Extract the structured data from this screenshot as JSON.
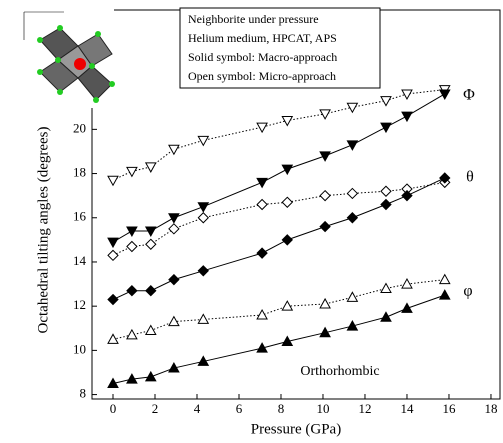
{
  "chart_data": {
    "type": "line",
    "xlabel": "Pressure (GPa)",
    "ylabel": "Octahedral tilting angles (degrees)",
    "xlim": [
      -1,
      18.43
    ],
    "ylim": [
      7.8,
      25.4
    ],
    "xticks": [
      0,
      2,
      4,
      6,
      8,
      10,
      12,
      14,
      16,
      18
    ],
    "yticks": [
      8,
      10,
      12,
      14,
      16,
      18,
      20
    ],
    "notes": [
      "Neighborite under pressure",
      "Helium medium, HPCAT, APS",
      "Solid symbol: Macro-approach",
      "Open symbol: Micro-approach"
    ],
    "annotations": [
      "Φ",
      "θ",
      "φ",
      "Orthorhombic"
    ],
    "series": [
      {
        "color": "#000000",
        "marker": "down-triangle",
        "filled": false,
        "dotted": true,
        "x": [
          0,
          0.9,
          1.8,
          2.9,
          4.3,
          7.1,
          8.3,
          10.1,
          11.4,
          13,
          14,
          15.8
        ],
        "values": [
          17.7,
          18.1,
          18.3,
          19.1,
          19.5,
          20.1,
          20.4,
          20.7,
          21.0,
          21.3,
          21.6,
          21.8
        ]
      },
      {
        "color": "#000000",
        "marker": "down-triangle",
        "filled": true,
        "dotted": false,
        "x": [
          0,
          0.9,
          1.8,
          2.9,
          4.3,
          7.1,
          8.3,
          10.1,
          11.4,
          13,
          14,
          15.8
        ],
        "values": [
          14.9,
          15.4,
          15.4,
          16.0,
          16.5,
          17.6,
          18.2,
          18.8,
          19.3,
          20.1,
          20.6,
          21.6
        ]
      },
      {
        "color": "#000000",
        "marker": "diamond",
        "filled": false,
        "dotted": true,
        "x": [
          0,
          0.9,
          1.8,
          2.9,
          4.3,
          7.1,
          8.3,
          10.1,
          11.4,
          13,
          14,
          15.8
        ],
        "values": [
          14.3,
          14.7,
          14.8,
          15.5,
          16.0,
          16.6,
          16.7,
          17.0,
          17.1,
          17.2,
          17.3,
          17.6
        ]
      },
      {
        "color": "#000000",
        "marker": "diamond",
        "filled": true,
        "dotted": false,
        "x": [
          0,
          0.9,
          1.8,
          2.9,
          4.3,
          7.1,
          8.3,
          10.1,
          11.4,
          13,
          14,
          15.8
        ],
        "values": [
          12.3,
          12.7,
          12.7,
          13.2,
          13.6,
          14.4,
          15.0,
          15.6,
          16.0,
          16.6,
          17.0,
          17.8
        ]
      },
      {
        "color": "#000000",
        "marker": "up-triangle",
        "filled": false,
        "dotted": true,
        "x": [
          0,
          0.9,
          1.8,
          2.9,
          4.3,
          7.1,
          8.3,
          10.1,
          11.4,
          13,
          14,
          15.8
        ],
        "values": [
          10.5,
          10.7,
          10.9,
          11.3,
          11.4,
          11.6,
          12.0,
          12.1,
          12.4,
          12.8,
          13.0,
          13.2
        ]
      },
      {
        "color": "#000000",
        "marker": "up-triangle",
        "filled": true,
        "dotted": false,
        "x": [
          0,
          0.9,
          1.8,
          2.9,
          4.3,
          7.1,
          8.3,
          10.1,
          11.4,
          13,
          14,
          15.8
        ],
        "values": [
          8.5,
          8.7,
          8.8,
          9.2,
          9.5,
          10.1,
          10.4,
          10.8,
          11.1,
          11.5,
          11.9,
          12.5
        ]
      }
    ]
  }
}
